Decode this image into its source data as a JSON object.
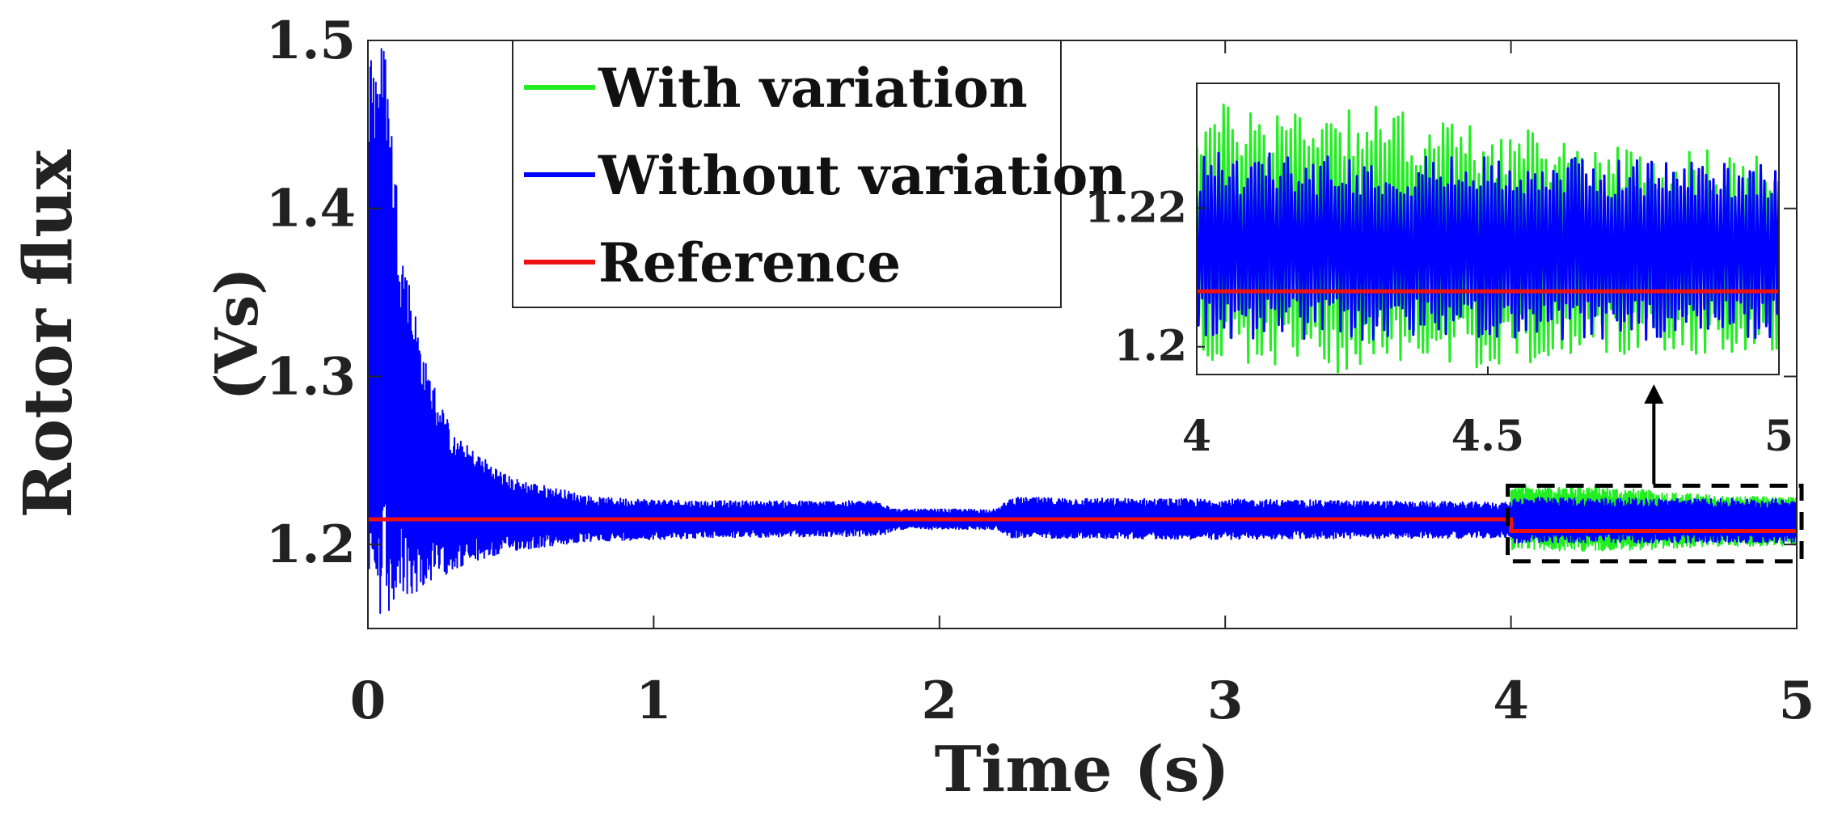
{
  "chart_data": [
    {
      "id": "main",
      "type": "line",
      "title": "",
      "xlabel": "Time (s)",
      "ylabel": "Rotor flux",
      "ylabel_unit": "(Vs)",
      "xlim": [
        0,
        5
      ],
      "ylim": [
        1.15,
        1.5
      ],
      "xticks": [
        0,
        1,
        2,
        3,
        4,
        5
      ],
      "xtick_labels": [
        "0",
        "1",
        "2",
        "3",
        "4",
        "5"
      ],
      "yticks": [
        1.2,
        1.3,
        1.4,
        1.5
      ],
      "ytick_labels": [
        "1.2",
        "1.3",
        "1.4",
        "1.5"
      ],
      "grid": false,
      "legend_position": "top-left",
      "series": [
        {
          "name": "With variation",
          "color": "#22ee22",
          "band": [
            {
              "x": 4.0,
              "min": 1.197,
              "max": 1.235
            },
            {
              "x": 4.25,
              "min": 1.196,
              "max": 1.236
            },
            {
              "x": 4.5,
              "min": 1.197,
              "max": 1.232
            },
            {
              "x": 4.75,
              "min": 1.199,
              "max": 1.229
            },
            {
              "x": 5.0,
              "min": 1.199,
              "max": 1.228
            }
          ]
        },
        {
          "name": "Without variation",
          "color": "#0000ff",
          "band": [
            {
              "x": 0.0,
              "min": 1.15,
              "max": 1.5
            },
            {
              "x": 0.06,
              "min": 1.15,
              "max": 1.5
            },
            {
              "x": 0.12,
              "min": 1.165,
              "max": 1.38
            },
            {
              "x": 0.2,
              "min": 1.175,
              "max": 1.31
            },
            {
              "x": 0.3,
              "min": 1.185,
              "max": 1.265
            },
            {
              "x": 0.5,
              "min": 1.196,
              "max": 1.24
            },
            {
              "x": 0.8,
              "min": 1.202,
              "max": 1.228
            },
            {
              "x": 1.2,
              "min": 1.204,
              "max": 1.226
            },
            {
              "x": 1.8,
              "min": 1.205,
              "max": 1.226
            },
            {
              "x": 1.85,
              "min": 1.209,
              "max": 1.221
            },
            {
              "x": 2.2,
              "min": 1.209,
              "max": 1.221
            },
            {
              "x": 2.25,
              "min": 1.204,
              "max": 1.228
            },
            {
              "x": 3.0,
              "min": 1.203,
              "max": 1.227
            },
            {
              "x": 4.0,
              "min": 1.204,
              "max": 1.225
            },
            {
              "x": 4.01,
              "min": 1.201,
              "max": 1.228
            },
            {
              "x": 5.0,
              "min": 1.201,
              "max": 1.227
            }
          ]
        },
        {
          "name": "Reference",
          "color": "#ee1111",
          "points": [
            [
              0,
              1.215
            ],
            [
              4.0,
              1.215
            ],
            [
              4.0,
              1.208
            ],
            [
              5.0,
              1.208
            ]
          ]
        }
      ],
      "annotations": [
        {
          "type": "dashed-box",
          "x": [
            4.0,
            5.0
          ],
          "y": [
            1.19,
            1.235
          ]
        },
        {
          "type": "arrow",
          "from": [
            4.5,
            1.235
          ],
          "to": "inset"
        }
      ]
    },
    {
      "id": "inset",
      "type": "line",
      "xlim": [
        4,
        5
      ],
      "ylim": [
        1.196,
        1.238
      ],
      "xticks": [
        4,
        4.5,
        5
      ],
      "xtick_labels": [
        "4",
        "4.5",
        "5"
      ],
      "yticks": [
        1.2,
        1.22
      ],
      "ytick_labels": [
        "1.2",
        "1.22"
      ]
    }
  ]
}
